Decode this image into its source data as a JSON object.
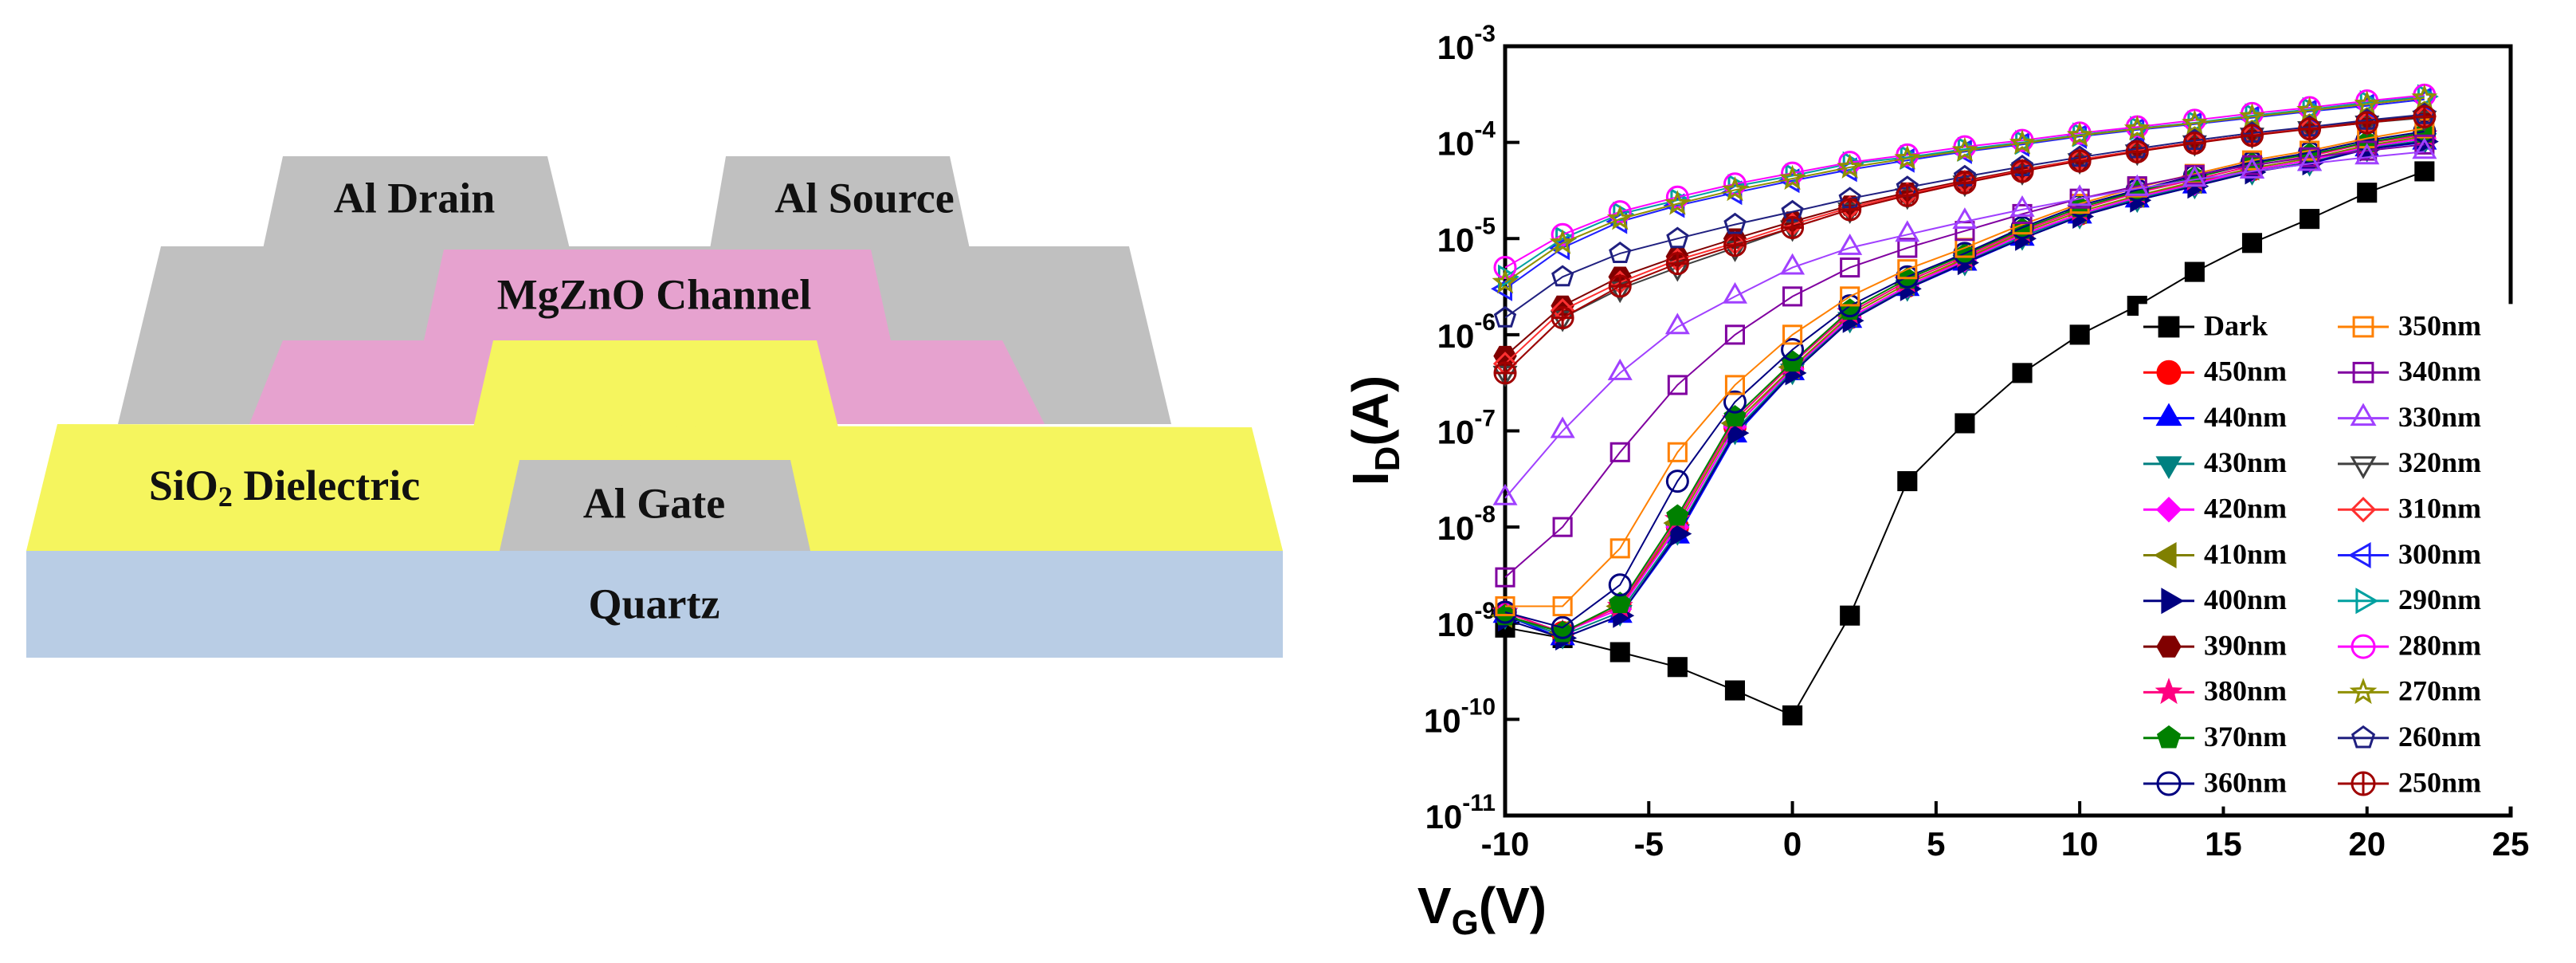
{
  "diagram": {
    "layers": {
      "drain": "Al Drain",
      "source": "Al Source",
      "channel": "MgZnO Channel",
      "dielectric": [
        "SiO",
        "2",
        " Dielectric"
      ],
      "gate": "Al Gate",
      "substrate": "Quartz"
    }
  },
  "chart_data": {
    "type": "scatter",
    "yscale": "log",
    "xlabel": [
      "V",
      "G",
      "(V)"
    ],
    "ylabel": [
      "I",
      "D",
      "(A)"
    ],
    "xlim": [
      -10,
      25
    ],
    "xticks": [
      -10,
      -5,
      0,
      5,
      10,
      15,
      20,
      25
    ],
    "ylim": [
      1e-11,
      0.001
    ],
    "yticks": [
      {
        "value": 1e-11,
        "label": "10",
        "exponent": "-11"
      },
      {
        "value": 1e-10,
        "label": "10",
        "exponent": "-10"
      },
      {
        "value": 1e-09,
        "label": "10",
        "exponent": "-9"
      },
      {
        "value": 1e-08,
        "label": "10",
        "exponent": "-8"
      },
      {
        "value": 1e-07,
        "label": "10",
        "exponent": "-7"
      },
      {
        "value": 1e-06,
        "label": "10",
        "exponent": "-6"
      },
      {
        "value": 1e-05,
        "label": "10",
        "exponent": "-5"
      },
      {
        "value": 0.0001,
        "label": "10",
        "exponent": "-4"
      },
      {
        "value": 0.001,
        "label": "10",
        "exponent": "-3"
      }
    ],
    "legend": "lower right",
    "x": [
      -10,
      -8,
      -6,
      -4,
      -2,
      0,
      2,
      4,
      6,
      8,
      10,
      12,
      14,
      16,
      18,
      20,
      22
    ],
    "series": [
      {
        "name": "Dark",
        "color": "#000000",
        "marker": "square",
        "filled": true,
        "values": [
          9e-10,
          7e-10,
          5e-10,
          3.5e-10,
          2e-10,
          1.1e-10,
          1.2e-09,
          3e-08,
          1.2e-07,
          4e-07,
          1e-06,
          2e-06,
          4.5e-06,
          9e-06,
          1.6e-05,
          3e-05,
          5e-05
        ]
      },
      {
        "name": "450nm",
        "color": "#ff0000",
        "marker": "circle",
        "filled": true,
        "values": [
          1.3e-09,
          8e-10,
          1.5e-09,
          1e-08,
          1.1e-07,
          4.5e-07,
          1.5e-06,
          3.2e-06,
          6e-06,
          1.1e-05,
          1.8e-05,
          2.7e-05,
          3.8e-05,
          5.2e-05,
          6.5e-05,
          9e-05,
          0.00011
        ]
      },
      {
        "name": "440nm",
        "color": "#0000ff",
        "marker": "triangle-up",
        "filled": true,
        "values": [
          1.2e-09,
          7e-10,
          1.2e-09,
          8e-09,
          9e-08,
          4e-07,
          1.4e-06,
          3e-06,
          5.5e-06,
          1e-05,
          1.7e-05,
          2.5e-05,
          3.5e-05,
          5e-05,
          6e-05,
          8.5e-05,
          0.0001
        ]
      },
      {
        "name": "430nm",
        "color": "#008080",
        "marker": "triangle-down",
        "filled": true,
        "values": [
          1.2e-09,
          7.5e-10,
          1.3e-09,
          9e-09,
          1e-07,
          4.2e-07,
          1.45e-06,
          3.1e-06,
          5.7e-06,
          1.05e-05,
          1.75e-05,
          2.6e-05,
          3.6e-05,
          5e-05,
          6.2e-05,
          8.7e-05,
          0.000105
        ]
      },
      {
        "name": "420nm",
        "color": "#ff00ff",
        "marker": "diamond",
        "filled": true,
        "values": [
          1.3e-09,
          8e-10,
          1.4e-09,
          1e-08,
          1.1e-07,
          4.4e-07,
          1.5e-06,
          3.2e-06,
          5.9e-06,
          1.1e-05,
          1.8e-05,
          2.7e-05,
          3.7e-05,
          5.2e-05,
          6.5e-05,
          9e-05,
          0.00011
        ]
      },
      {
        "name": "410nm",
        "color": "#808000",
        "marker": "triangle-left",
        "filled": true,
        "values": [
          1.2e-09,
          8e-10,
          1.5e-09,
          1.1e-08,
          1.2e-07,
          4.6e-07,
          1.6e-06,
          3.4e-06,
          6.2e-06,
          1.15e-05,
          1.9e-05,
          2.8e-05,
          3.9e-05,
          5.4e-05,
          6.8e-05,
          9.3e-05,
          0.000115
        ]
      },
      {
        "name": "400nm",
        "color": "#000080",
        "marker": "triangle-right",
        "filled": true,
        "values": [
          1.1e-09,
          7e-10,
          1.2e-09,
          8.5e-09,
          9.5e-08,
          4e-07,
          1.4e-06,
          3e-06,
          5.6e-06,
          1e-05,
          1.7e-05,
          2.5e-05,
          3.5e-05,
          4.9e-05,
          6.1e-05,
          8.5e-05,
          0.000102
        ]
      },
      {
        "name": "390nm",
        "color": "#800000",
        "marker": "hexagon",
        "filled": true,
        "values": [
          6e-07,
          2e-06,
          4e-06,
          6.5e-06,
          1e-05,
          1.5e-05,
          2.2e-05,
          3e-05,
          4e-05,
          5.2e-05,
          6.6e-05,
          8.2e-05,
          0.0001,
          0.00012,
          0.00014,
          0.000165,
          0.00019
        ]
      },
      {
        "name": "380nm",
        "color": "#ff0080",
        "marker": "star",
        "filled": true,
        "values": [
          1.3e-09,
          8e-10,
          1.5e-09,
          1.2e-08,
          1.3e-07,
          5e-07,
          1.7e-06,
          3.6e-06,
          6.5e-06,
          1.2e-05,
          2e-05,
          3e-05,
          4.1e-05,
          5.7e-05,
          7.2e-05,
          9.8e-05,
          0.00012
        ]
      },
      {
        "name": "370nm",
        "color": "#008000",
        "marker": "pentagon",
        "filled": true,
        "values": [
          1.2e-09,
          8e-10,
          1.6e-09,
          1.3e-08,
          1.4e-07,
          5.2e-07,
          1.8e-06,
          3.8e-06,
          6.8e-06,
          1.25e-05,
          2.1e-05,
          3.1e-05,
          4.3e-05,
          6e-05,
          7.5e-05,
          0.0001,
          0.000125
        ]
      },
      {
        "name": "360nm",
        "color": "#000080",
        "marker": "circle",
        "filled": false,
        "values": [
          1.3e-09,
          9e-10,
          2.5e-09,
          3e-08,
          2e-07,
          7e-07,
          2e-06,
          4e-06,
          7e-06,
          1.3e-05,
          2.2e-05,
          3.2e-05,
          4.5e-05,
          6.2e-05,
          7.8e-05,
          0.000105,
          0.00013
        ]
      },
      {
        "name": "350nm",
        "color": "#ff8000",
        "marker": "square",
        "filled": false,
        "values": [
          1.5e-09,
          1.5e-09,
          6e-09,
          6e-08,
          3e-07,
          1e-06,
          2.5e-06,
          4.8e-06,
          8e-06,
          1.4e-05,
          2.3e-05,
          3.4e-05,
          4.7e-05,
          6.5e-05,
          8.2e-05,
          0.00011,
          0.00014
        ]
      },
      {
        "name": "340nm",
        "color": "#8000a0",
        "marker": "square",
        "filled": false,
        "values": [
          3e-09,
          1e-08,
          6e-08,
          3e-07,
          1e-06,
          2.5e-06,
          5e-06,
          8e-06,
          1.2e-05,
          1.8e-05,
          2.6e-05,
          3.5e-05,
          4.6e-05,
          5.8e-05,
          7e-05,
          8.2e-05,
          9.5e-05
        ]
      },
      {
        "name": "330nm",
        "color": "#a040ff",
        "marker": "triangle-up",
        "filled": false,
        "values": [
          2e-08,
          1e-07,
          4e-07,
          1.2e-06,
          2.5e-06,
          5e-06,
          8e-06,
          1.1e-05,
          1.5e-05,
          2e-05,
          2.6e-05,
          3.3e-05,
          4.1e-05,
          5e-05,
          6e-05,
          7e-05,
          8e-05
        ]
      },
      {
        "name": "320nm",
        "color": "#404040",
        "marker": "triangle-down",
        "filled": false,
        "values": [
          4e-07,
          1.5e-06,
          3e-06,
          5e-06,
          8e-06,
          1.3e-05,
          2e-05,
          2.8e-05,
          3.8e-05,
          5e-05,
          6.5e-05,
          8e-05,
          0.0001,
          0.00012,
          0.00014,
          0.00016,
          0.00018
        ]
      },
      {
        "name": "310nm",
        "color": "#ff3030",
        "marker": "diamond",
        "filled": false,
        "values": [
          5e-07,
          1.8e-06,
          3.5e-06,
          6e-06,
          9e-06,
          1.4e-05,
          2.1e-05,
          2.9e-05,
          3.9e-05,
          5.1e-05,
          6.6e-05,
          8.2e-05,
          0.0001,
          0.00012,
          0.00014,
          0.00016,
          0.000185
        ]
      },
      {
        "name": "300nm",
        "color": "#2020ff",
        "marker": "triangle-left",
        "filled": false,
        "values": [
          3e-06,
          8e-06,
          1.5e-05,
          2.2e-05,
          3e-05,
          4e-05,
          5.2e-05,
          6.5e-05,
          8e-05,
          9.5e-05,
          0.000115,
          0.000135,
          0.000155,
          0.00018,
          0.00021,
          0.00024,
          0.00028
        ]
      },
      {
        "name": "290nm",
        "color": "#00a0a0",
        "marker": "triangle-right",
        "filled": false,
        "values": [
          4e-06,
          1e-05,
          1.8e-05,
          2.5e-05,
          3.5e-05,
          4.5e-05,
          6e-05,
          7e-05,
          8.5e-05,
          0.0001,
          0.00012,
          0.00014,
          0.00016,
          0.00019,
          0.00022,
          0.00026,
          0.0003
        ]
      },
      {
        "name": "280nm",
        "color": "#ff00ff",
        "marker": "circle",
        "filled": false,
        "values": [
          5e-06,
          1.1e-05,
          1.9e-05,
          2.7e-05,
          3.7e-05,
          4.8e-05,
          6.2e-05,
          7.4e-05,
          9e-05,
          0.000105,
          0.000125,
          0.000145,
          0.00017,
          0.0002,
          0.00023,
          0.00027,
          0.00031
        ]
      },
      {
        "name": "270nm",
        "color": "#909000",
        "marker": "star",
        "filled": false,
        "values": [
          3.5e-06,
          9e-06,
          1.6e-05,
          2.3e-05,
          3.2e-05,
          4.2e-05,
          5.5e-05,
          6.8e-05,
          8.2e-05,
          9.8e-05,
          0.000118,
          0.000138,
          0.000158,
          0.000185,
          0.000215,
          0.00025,
          0.00029
        ]
      },
      {
        "name": "260nm",
        "color": "#202080",
        "marker": "pentagon",
        "filled": false,
        "values": [
          1.5e-06,
          4e-06,
          7e-06,
          1e-05,
          1.4e-05,
          1.9e-05,
          2.6e-05,
          3.4e-05,
          4.4e-05,
          5.6e-05,
          7e-05,
          8.6e-05,
          0.000105,
          0.000125,
          0.000145,
          0.00017,
          0.000195
        ]
      },
      {
        "name": "250nm",
        "color": "#a00000",
        "marker": "circle-plus",
        "filled": false,
        "values": [
          4e-07,
          1.5e-06,
          3.2e-06,
          5.5e-06,
          8.5e-06,
          1.3e-05,
          2e-05,
          2.8e-05,
          3.8e-05,
          5e-05,
          6.4e-05,
          8e-05,
          9.8e-05,
          0.000118,
          0.000138,
          0.00016,
          0.000185
        ]
      }
    ]
  }
}
